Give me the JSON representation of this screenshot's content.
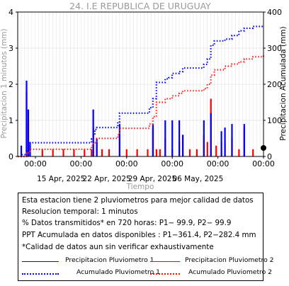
{
  "chart_data": {
    "type": "bar+line",
    "title": "24. I.E REPUBLICA DE URUGUAY",
    "xlabel": "Tiempo",
    "ylabel_left": "Precipitacion 1 minutos (mm)",
    "ylabel_right": "Precipitacion Acumulada (mm)",
    "x_start": "2025-04-11",
    "x_end": "2025-05-16",
    "x_major_tick_labels": [
      "15 Apr, 2025",
      "22 Apr, 2025",
      "29 Apr, 2025",
      "06 May, 2025"
    ],
    "x_minor_tick_label": "00:00",
    "x_minor_tick_count": 6,
    "ylim_left": [
      0,
      4
    ],
    "yticks_left": [
      0,
      1,
      2,
      3,
      4
    ],
    "ylim_right": [
      0,
      400
    ],
    "yticks_right": [
      0,
      100,
      200,
      300,
      400
    ],
    "grid": true,
    "series": [
      {
        "name": "Precipitacion Pluviometro 1",
        "type": "bar",
        "color": "#0000ff",
        "points": [
          [
            "2025-04-11T12:00",
            0.3
          ],
          [
            "2025-04-12T06:00",
            2.1
          ],
          [
            "2025-04-12T12:00",
            1.3
          ],
          [
            "2025-04-12T18:00",
            0.4
          ],
          [
            "2025-04-21T18:00",
            1.3
          ],
          [
            "2025-04-22T06:00",
            0.5
          ],
          [
            "2025-04-25T12:00",
            0.9
          ],
          [
            "2025-04-30T06:00",
            0.9
          ],
          [
            "2025-05-02T00:00",
            1.0
          ],
          [
            "2025-05-03T00:00",
            1.0
          ],
          [
            "2025-05-04T00:00",
            1.0
          ],
          [
            "2025-05-04T12:00",
            0.6
          ],
          [
            "2025-05-07T12:00",
            1.0
          ],
          [
            "2025-05-08T12:00",
            1.2
          ],
          [
            "2025-05-10T00:00",
            0.7
          ],
          [
            "2025-05-10T12:00",
            0.8
          ],
          [
            "2025-05-11T12:00",
            0.9
          ],
          [
            "2025-05-13T06:00",
            0.9
          ]
        ]
      },
      {
        "name": "Precipitacion Pluviometro 2",
        "type": "bar",
        "color": "#ff0000",
        "points": [
          [
            "2025-04-12T06:00",
            1.8
          ],
          [
            "2025-04-12T12:00",
            1.0
          ],
          [
            "2025-04-12T18:00",
            0.3
          ],
          [
            "2025-04-14T12:00",
            0.2
          ],
          [
            "2025-04-16T00:00",
            0.2
          ],
          [
            "2025-04-17T12:00",
            0.2
          ],
          [
            "2025-04-19T00:00",
            0.2
          ],
          [
            "2025-04-20T12:00",
            0.2
          ],
          [
            "2025-04-21T12:00",
            0.2
          ],
          [
            "2025-04-21T18:00",
            0.8
          ],
          [
            "2025-04-22T06:00",
            0.4
          ],
          [
            "2025-04-23T00:00",
            0.2
          ],
          [
            "2025-04-24T00:00",
            0.2
          ],
          [
            "2025-04-25T12:00",
            0.6
          ],
          [
            "2025-04-26T12:00",
            0.2
          ],
          [
            "2025-04-28T00:00",
            0.2
          ],
          [
            "2025-04-29T12:00",
            0.2
          ],
          [
            "2025-04-30T06:00",
            0.8
          ],
          [
            "2025-04-30T18:00",
            0.2
          ],
          [
            "2025-05-01T06:00",
            0.2
          ],
          [
            "2025-05-02T00:00",
            0.5
          ],
          [
            "2025-05-03T00:00",
            0.2
          ],
          [
            "2025-05-04T00:00",
            0.4
          ],
          [
            "2025-05-04T12:00",
            0.6
          ],
          [
            "2025-05-05T12:00",
            0.2
          ],
          [
            "2025-05-06T12:00",
            0.2
          ],
          [
            "2025-05-07T12:00",
            0.6
          ],
          [
            "2025-05-08T00:00",
            0.4
          ],
          [
            "2025-05-08T12:00",
            1.6
          ],
          [
            "2025-05-09T06:00",
            0.3
          ],
          [
            "2025-05-10T00:00",
            0.4
          ],
          [
            "2025-05-10T12:00",
            0.4
          ],
          [
            "2025-05-11T12:00",
            0.5
          ],
          [
            "2025-05-12T12:00",
            0.2
          ],
          [
            "2025-05-13T06:00",
            0.8
          ],
          [
            "2025-05-14T12:00",
            0.2
          ]
        ]
      },
      {
        "name": "Acumulado Pluviometro 1",
        "type": "line",
        "style": "dotted",
        "axis": "right",
        "color": "#0000ff",
        "points": [
          [
            "2025-04-11T00:00",
            0
          ],
          [
            "2025-04-11T12:00",
            5
          ],
          [
            "2025-04-12T06:00",
            15
          ],
          [
            "2025-04-12T18:00",
            38
          ],
          [
            "2025-04-21T12:00",
            48
          ],
          [
            "2025-04-21T18:00",
            58
          ],
          [
            "2025-04-22T00:00",
            75
          ],
          [
            "2025-04-22T06:00",
            80
          ],
          [
            "2025-04-25T06:00",
            95
          ],
          [
            "2025-04-25T12:00",
            120
          ],
          [
            "2025-04-29T18:00",
            135
          ],
          [
            "2025-04-30T06:00",
            160
          ],
          [
            "2025-04-30T18:00",
            205
          ],
          [
            "2025-05-02T00:00",
            215
          ],
          [
            "2025-05-02T12:00",
            218
          ],
          [
            "2025-05-03T00:00",
            230
          ],
          [
            "2025-05-04T00:00",
            235
          ],
          [
            "2025-05-04T12:00",
            245
          ],
          [
            "2025-05-07T12:00",
            255
          ],
          [
            "2025-05-08T00:00",
            270
          ],
          [
            "2025-05-08T12:00",
            308
          ],
          [
            "2025-05-09T00:00",
            320
          ],
          [
            "2025-05-10T12:00",
            325
          ],
          [
            "2025-05-11T12:00",
            335
          ],
          [
            "2025-05-12T12:00",
            348
          ],
          [
            "2025-05-13T06:00",
            355
          ],
          [
            "2025-05-14T12:00",
            360
          ],
          [
            "2025-05-16T00:00",
            362
          ]
        ]
      },
      {
        "name": "Acumulado Pluviometro 2",
        "type": "line",
        "style": "dotted",
        "axis": "right",
        "color": "#ff0000",
        "points": [
          [
            "2025-04-11T00:00",
            0
          ],
          [
            "2025-04-12T06:00",
            10
          ],
          [
            "2025-04-12T18:00",
            20
          ],
          [
            "2025-04-21T12:00",
            30
          ],
          [
            "2025-04-21T18:00",
            38
          ],
          [
            "2025-04-22T06:00",
            50
          ],
          [
            "2025-04-25T06:00",
            60
          ],
          [
            "2025-04-25T12:00",
            78
          ],
          [
            "2025-04-29T18:00",
            90
          ],
          [
            "2025-04-30T06:00",
            110
          ],
          [
            "2025-04-30T18:00",
            150
          ],
          [
            "2025-05-02T00:00",
            160
          ],
          [
            "2025-05-03T00:00",
            168
          ],
          [
            "2025-05-04T00:00",
            175
          ],
          [
            "2025-05-04T12:00",
            182
          ],
          [
            "2025-05-07T12:00",
            188
          ],
          [
            "2025-05-08T00:00",
            200
          ],
          [
            "2025-05-08T12:00",
            225
          ],
          [
            "2025-05-09T00:00",
            240
          ],
          [
            "2025-05-10T12:00",
            250
          ],
          [
            "2025-05-11T12:00",
            256
          ],
          [
            "2025-05-12T12:00",
            262
          ],
          [
            "2025-05-13T06:00",
            270
          ],
          [
            "2025-05-14T12:00",
            276
          ],
          [
            "2025-05-16T00:00",
            282
          ]
        ]
      }
    ]
  },
  "info": {
    "lines": [
      "Esta estacion tiene 2 pluviometros para mejor calidad de datos",
      "Resolucion temporal: 1 minutos",
      "% Datos transmitidos* en 720 horas: P1− 99.9, P2− 99.9",
      "PPT Acumulada en datos disponibles : P1−361.4, P2−282.4 mm",
      "*Calidad de datos aun sin verificar exhaustivamente"
    ],
    "legend": [
      {
        "label": "Precipitacion Pluviometro 1",
        "color": "#0000ff",
        "style": "solid"
      },
      {
        "label": "Precipitacion Pluviometro 2",
        "color": "#ff0000",
        "style": "solid"
      },
      {
        "label": "Acumulado Pluviometro 1",
        "color": "#0000ff",
        "style": "dotted"
      },
      {
        "label": "Acumulado Pluviometro 2",
        "color": "#ff0000",
        "style": "dotted"
      }
    ]
  },
  "colors": {
    "title": "#999999",
    "axis_label_left": "#999999",
    "axis_label_right": "#000000",
    "grid": "#dddddd"
  }
}
